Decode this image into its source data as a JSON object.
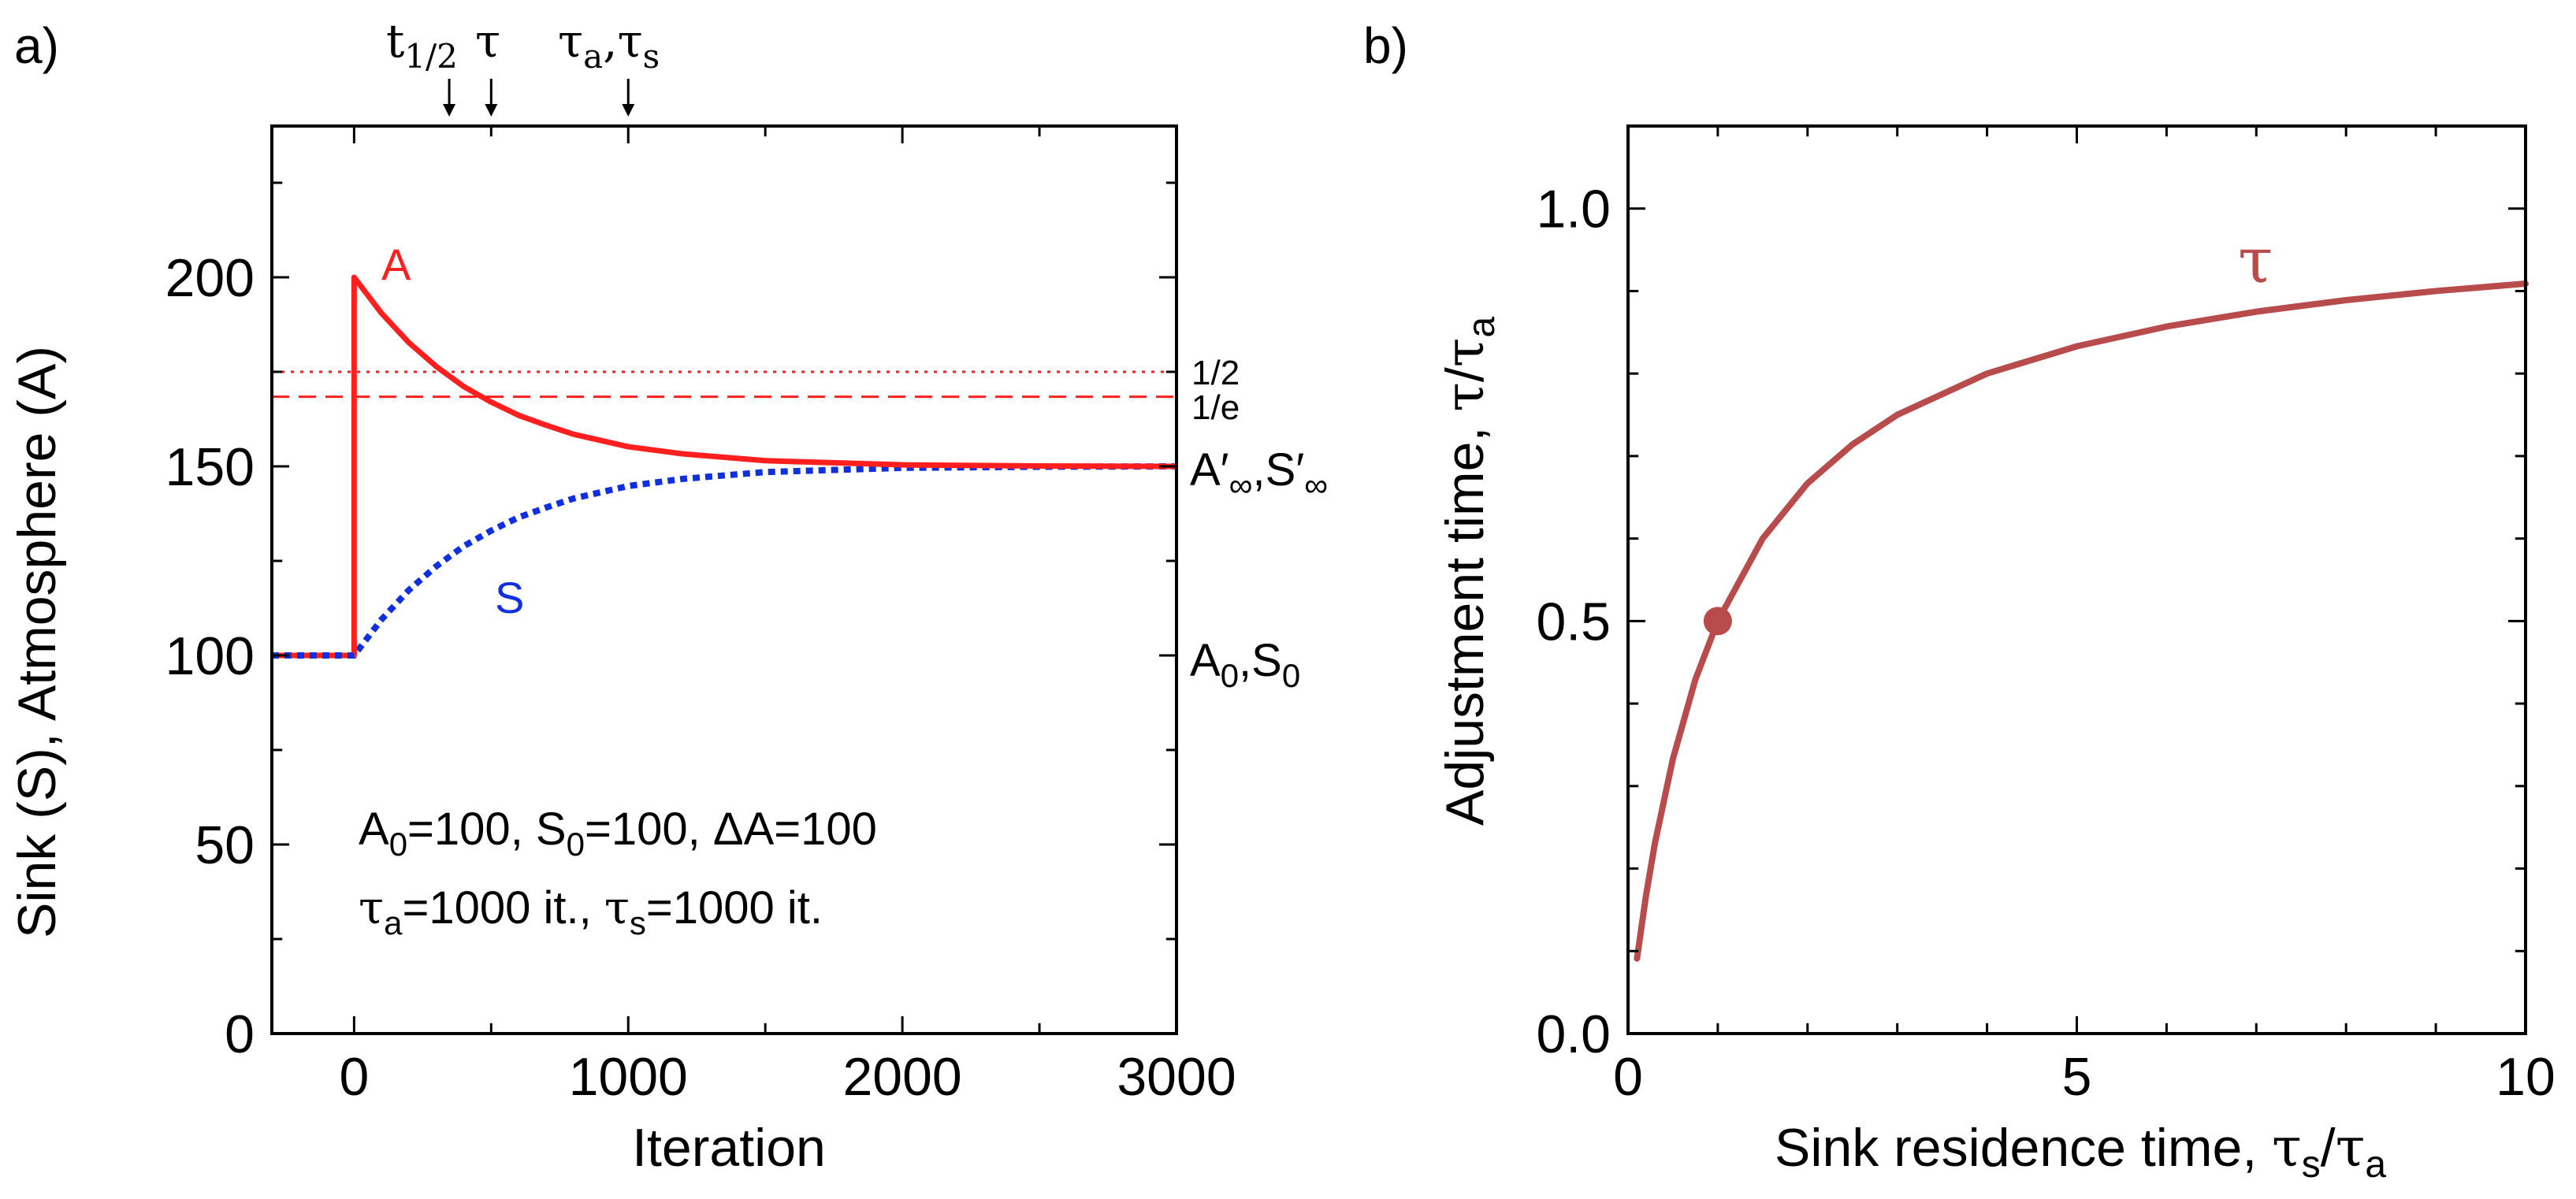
{
  "panel_a": {
    "tag": "a)",
    "top_markers": {
      "t_half": "t",
      "t_half_sub": "1/2",
      "tau": "τ",
      "tau_a": "τ",
      "tau_a_sub": "a",
      "comma": ",",
      "tau_s": "τ",
      "tau_s_sub": "s"
    },
    "ylabel": "Sink (S), Atmosphere (A)",
    "xlabel": "Iteration",
    "xticks": [
      "0",
      "1000",
      "2000",
      "3000"
    ],
    "yticks": [
      "0",
      "50",
      "100",
      "150",
      "200"
    ],
    "label_a": "A",
    "label_s": "S",
    "right_half": "1/2",
    "right_e": "1/e",
    "right_inf": {
      "a": "A′",
      "sub1": "∞",
      "comma": ",",
      "s": "S′",
      "sub2": "∞"
    },
    "right_zero": {
      "a": "A",
      "sub1": "0",
      "comma": ",",
      "s": "S",
      "sub2": "0"
    },
    "params_line1": {
      "a": "A",
      "a_sub": "0",
      "a_val": "=100, S",
      "s_sub": "0",
      "s_val": "=100, ",
      "delta": "Δ",
      "d_val": "A=100"
    },
    "params_line2": {
      "tau_a": "τ",
      "tau_a_sub": "a",
      "tau_a_val": "=1000 it., ",
      "tau_s": "τ",
      "tau_s_sub": "s",
      "tau_s_val": "=1000 it."
    }
  },
  "panel_b": {
    "tag": "b)",
    "ylabel": {
      "text": "Adjustment time, ",
      "tau": "τ",
      "slash": "/",
      "tau_a": "τ",
      "sub": "a"
    },
    "xlabel": {
      "text": "Sink residence time, ",
      "tau_s": "τ",
      "sub_s": "s",
      "slash": "/",
      "tau_a": "τ",
      "sub_a": "a"
    },
    "xticks": [
      "0",
      "5",
      "10"
    ],
    "yticks": [
      "0.0",
      "0.5",
      "1.0"
    ],
    "curve_label": "τ"
  },
  "colors": {
    "atmosphere": "#ff1f1f",
    "sink": "#1030e0",
    "tau_curve": "#b84c4c",
    "axis": "#000000"
  },
  "chart_data": [
    {
      "type": "line",
      "xlabel": "Iteration",
      "ylabel": "Sink (S), Atmosphere (A)",
      "xlim": [
        -300,
        3000
      ],
      "ylim": [
        0,
        240
      ],
      "xticks": [
        0,
        1000,
        2000,
        3000
      ],
      "yticks": [
        0,
        50,
        100,
        150,
        200
      ],
      "series": [
        {
          "name": "A",
          "style": "solid",
          "x": [
            -300,
            0,
            0,
            100,
            200,
            300,
            400,
            500,
            600,
            700,
            800,
            1000,
            1200,
            1500,
            2000,
            2500,
            3000
          ],
          "y": [
            100,
            100,
            200,
            190.5,
            182.7,
            176.4,
            171.1,
            167.0,
            163.5,
            160.9,
            158.5,
            155.2,
            153.3,
            151.5,
            150.4,
            150.1,
            150.0
          ]
        },
        {
          "name": "S",
          "style": "dotted",
          "x": [
            -300,
            0,
            100,
            200,
            300,
            400,
            500,
            600,
            700,
            800,
            1000,
            1200,
            1500,
            2000,
            2500,
            3000
          ],
          "y": [
            100,
            100,
            109.5,
            117.3,
            123.6,
            128.9,
            133.0,
            136.5,
            139.1,
            141.5,
            144.8,
            146.7,
            148.5,
            149.6,
            149.9,
            150.0
          ]
        }
      ],
      "hlines": [
        {
          "label": "1/2",
          "y": 175,
          "style": "dotted"
        },
        {
          "label": "1/e",
          "y": 168.4,
          "style": "dashed"
        }
      ],
      "markers": [
        {
          "label": "t1/2",
          "x": 347
        },
        {
          "label": "τ",
          "x": 500
        },
        {
          "label": "τa,τs",
          "x": 1000
        }
      ]
    },
    {
      "type": "line",
      "xlabel": "Sink residence time, τs/τa",
      "ylabel": "Adjustment time, τ/τa",
      "xlim": [
        0,
        10
      ],
      "ylim": [
        0,
        1.1
      ],
      "xticks": [
        0,
        5,
        10
      ],
      "yticks": [
        0.0,
        0.5,
        1.0
      ],
      "series": [
        {
          "name": "τ",
          "x": [
            0.1,
            0.2,
            0.3,
            0.5,
            0.75,
            1,
            1.5,
            2,
            2.5,
            3,
            4,
            5,
            6,
            7,
            8,
            9,
            10
          ],
          "y": [
            0.091,
            0.167,
            0.231,
            0.333,
            0.429,
            0.5,
            0.6,
            0.667,
            0.714,
            0.75,
            0.8,
            0.833,
            0.857,
            0.875,
            0.889,
            0.9,
            0.909
          ]
        }
      ],
      "points": [
        {
          "x": 1,
          "y": 0.5
        }
      ]
    }
  ]
}
